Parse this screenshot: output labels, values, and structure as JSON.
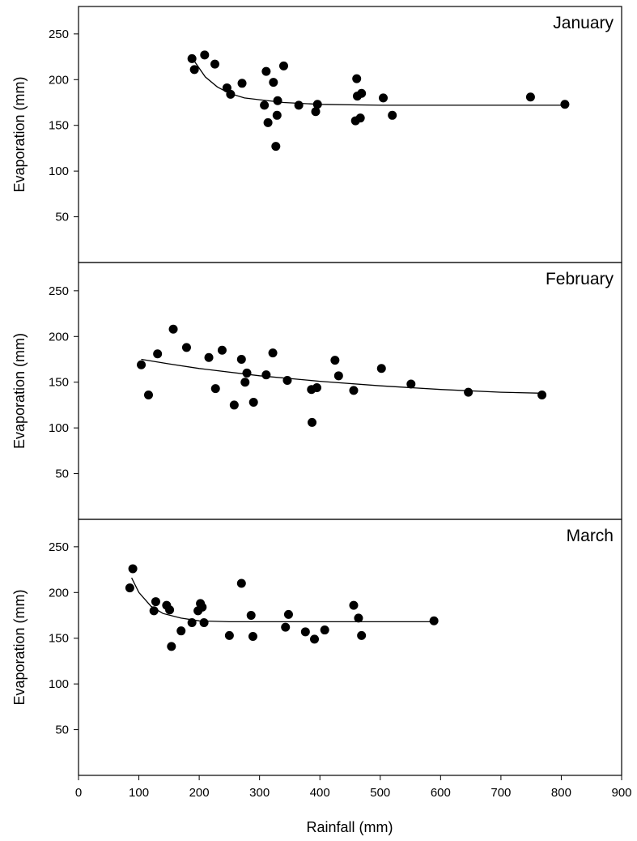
{
  "chart_data": {
    "type": "scatter",
    "xlabel": "Rainfall (mm)",
    "xlim": [
      0,
      900
    ],
    "xticks": [
      0,
      100,
      200,
      300,
      400,
      500,
      600,
      700,
      800,
      900
    ],
    "ylabel": "Evaporation (mm)",
    "ylim": [
      0,
      280
    ],
    "yticks": [
      50,
      100,
      150,
      200,
      250
    ],
    "grid": false,
    "panels": [
      {
        "title": "January",
        "points": [
          [
            188,
            223
          ],
          [
            192,
            211
          ],
          [
            209,
            227
          ],
          [
            226,
            217
          ],
          [
            246,
            191
          ],
          [
            252,
            184
          ],
          [
            271,
            196
          ],
          [
            308,
            172
          ],
          [
            311,
            209
          ],
          [
            314,
            153
          ],
          [
            323,
            197
          ],
          [
            327,
            127
          ],
          [
            329,
            161
          ],
          [
            330,
            177
          ],
          [
            340,
            215
          ],
          [
            365,
            172
          ],
          [
            393,
            165
          ],
          [
            396,
            173
          ],
          [
            459,
            155
          ],
          [
            461,
            201
          ],
          [
            462,
            182
          ],
          [
            467,
            158
          ],
          [
            469,
            185
          ],
          [
            505,
            180
          ],
          [
            520,
            161
          ],
          [
            749,
            181
          ],
          [
            806,
            173
          ]
        ],
        "fit": [
          [
            190,
            222
          ],
          [
            210,
            203
          ],
          [
            230,
            192
          ],
          [
            250,
            185
          ],
          [
            275,
            180
          ],
          [
            300,
            178
          ],
          [
            340,
            175
          ],
          [
            400,
            173
          ],
          [
            500,
            172
          ],
          [
            806,
            172
          ]
        ]
      },
      {
        "title": "February",
        "points": [
          [
            104,
            169
          ],
          [
            116,
            136
          ],
          [
            131,
            181
          ],
          [
            157,
            208
          ],
          [
            179,
            188
          ],
          [
            216,
            177
          ],
          [
            227,
            143
          ],
          [
            238,
            185
          ],
          [
            258,
            125
          ],
          [
            270,
            175
          ],
          [
            276,
            150
          ],
          [
            279,
            160
          ],
          [
            290,
            128
          ],
          [
            311,
            158
          ],
          [
            322,
            182
          ],
          [
            346,
            152
          ],
          [
            386,
            142
          ],
          [
            387,
            106
          ],
          [
            395,
            144
          ],
          [
            425,
            174
          ],
          [
            431,
            157
          ],
          [
            456,
            141
          ],
          [
            502,
            165
          ],
          [
            551,
            148
          ],
          [
            646,
            139
          ],
          [
            768,
            136
          ]
        ],
        "fit": [
          [
            104,
            175
          ],
          [
            150,
            170
          ],
          [
            200,
            165
          ],
          [
            300,
            157
          ],
          [
            400,
            151
          ],
          [
            500,
            146
          ],
          [
            600,
            142
          ],
          [
            700,
            139
          ],
          [
            768,
            138
          ]
        ]
      },
      {
        "title": "March",
        "points": [
          [
            85,
            205
          ],
          [
            90,
            226
          ],
          [
            125,
            180
          ],
          [
            128,
            190
          ],
          [
            146,
            186
          ],
          [
            151,
            181
          ],
          [
            154,
            141
          ],
          [
            170,
            158
          ],
          [
            188,
            167
          ],
          [
            198,
            180
          ],
          [
            202,
            188
          ],
          [
            205,
            184
          ],
          [
            208,
            167
          ],
          [
            250,
            153
          ],
          [
            270,
            210
          ],
          [
            286,
            175
          ],
          [
            289,
            152
          ],
          [
            343,
            162
          ],
          [
            348,
            176
          ],
          [
            376,
            157
          ],
          [
            391,
            149
          ],
          [
            408,
            159
          ],
          [
            456,
            186
          ],
          [
            464,
            172
          ],
          [
            469,
            153
          ],
          [
            589,
            169
          ]
        ],
        "fit": [
          [
            88,
            216
          ],
          [
            100,
            200
          ],
          [
            120,
            185
          ],
          [
            140,
            177
          ],
          [
            170,
            172
          ],
          [
            200,
            169
          ],
          [
            250,
            168
          ],
          [
            300,
            168
          ],
          [
            400,
            168
          ],
          [
            589,
            168
          ]
        ]
      }
    ]
  }
}
